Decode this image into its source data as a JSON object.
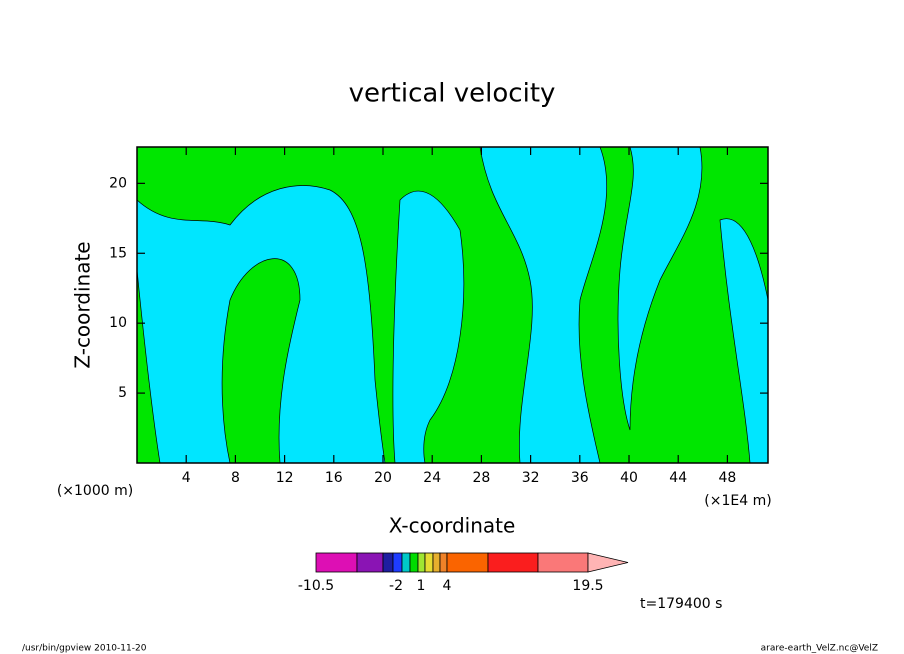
{
  "chart_data": {
    "type": "contour",
    "title": "vertical velocity",
    "x_label": "X-coordinate",
    "y_label": "Z-coordinate",
    "x_unit": "(×1E4 m)",
    "y_unit": "(×1000 m)",
    "xlim": [
      0,
      51.3
    ],
    "xticks": [
      4,
      8,
      12,
      16,
      20,
      24,
      28,
      32,
      36,
      40,
      44,
      48
    ],
    "ylim": [
      0,
      22.6
    ],
    "yticks": [
      5,
      10,
      15,
      20
    ],
    "colorbar": {
      "colors": [
        "#dd0fb4",
        "#8a14b4",
        "#1e1ea0",
        "#1e3cff",
        "#00c8c8",
        "#00dc00",
        "#a0e632",
        "#e6dc32",
        "#e6af2d",
        "#f08228",
        "#fa6400",
        "#fa1e1e",
        "#fa7878",
        "#ffb4b4"
      ],
      "ticks": [
        "-10.5",
        "-2",
        "1",
        "4",
        "19.5"
      ]
    },
    "time_label": "t=179400 s",
    "footer_left": "/usr/bin/gpview  2010-11-20",
    "footer_right": "arare-earth_VelZ.nc@VelZ"
  }
}
